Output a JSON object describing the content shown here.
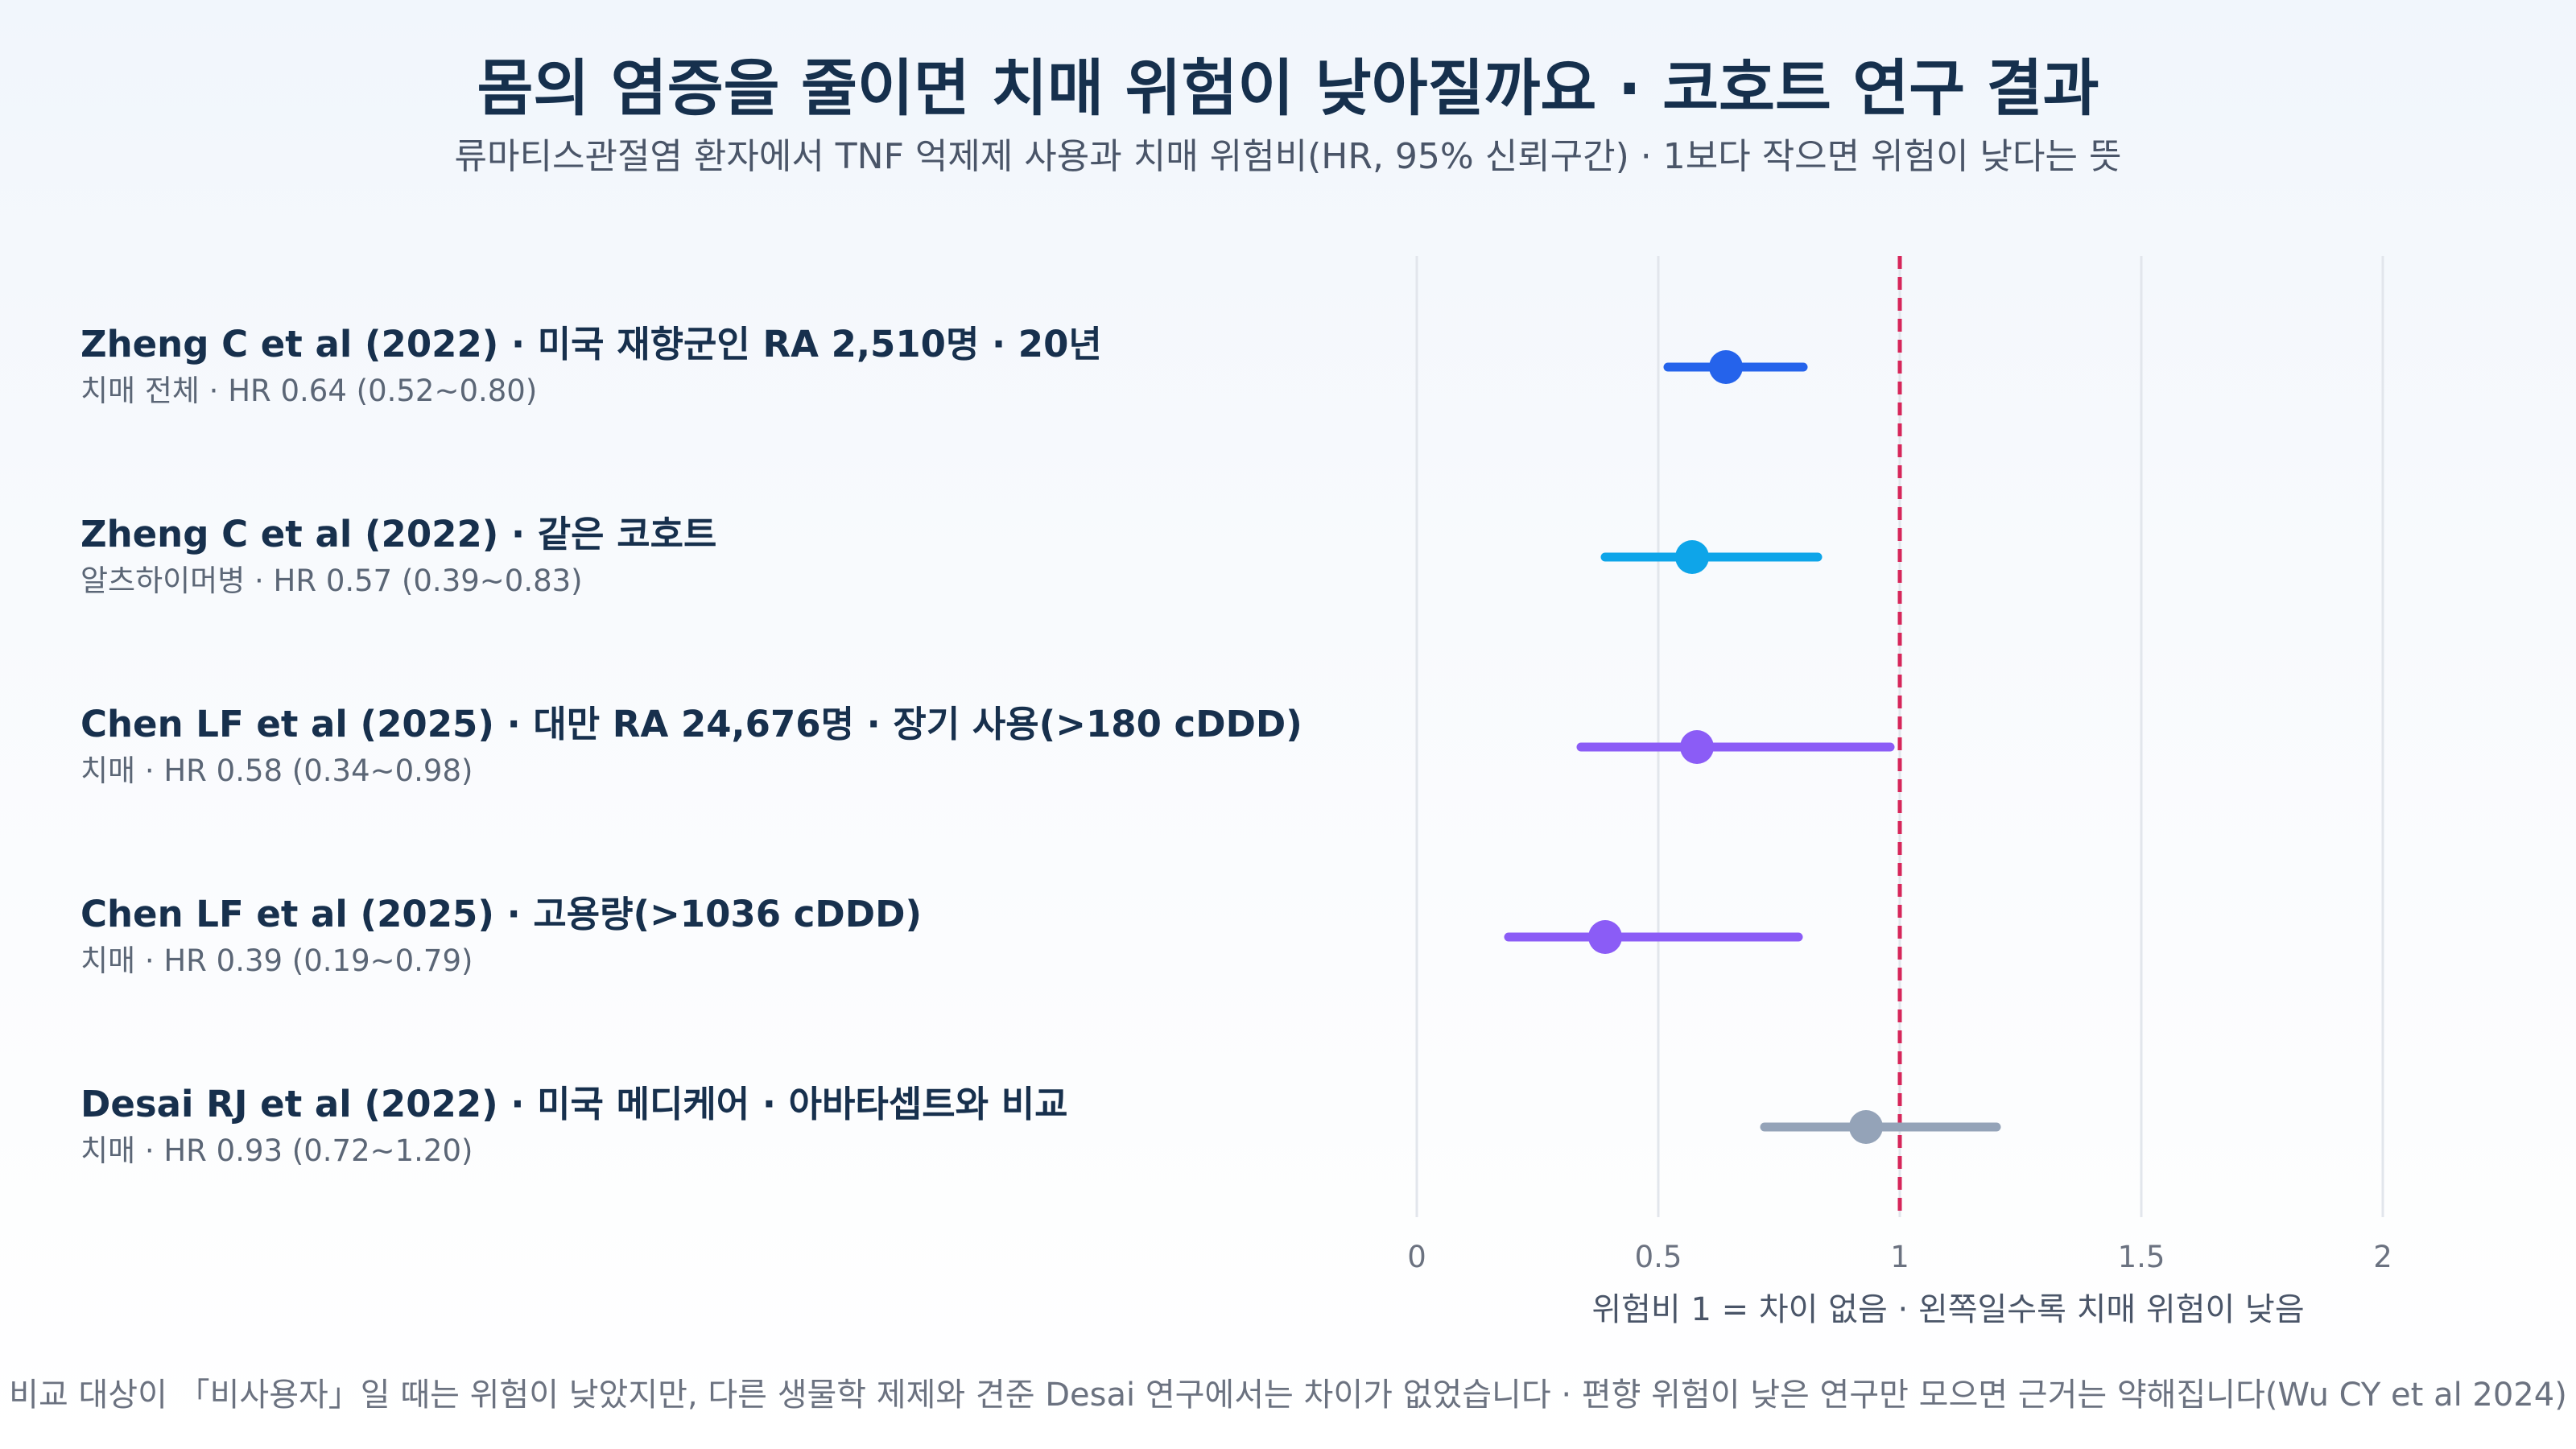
{
  "title": "몸의 염증을 줄이면 치매 위험이 낮아질까요 · 코호트 연구 결과",
  "subtitle": "류마티스관절염 환자에서 TNF 억제제 사용과 치매 위험비(HR, 95% 신뢰구간) · 1보다 작으면 위험이 낮다는 뜻",
  "footnote": "비교 대상이 「비사용자」일 때는 위험이 낮았지만, 다른 생물학 제제와 견준 Desai 연구에서는 차이가 없었습니다 · 편향 위험이 낮은 연구만 모으면 근거는 약해집니다(Wu CY et al 2024)",
  "colors": {
    "blue": "#2563eb",
    "sky": "#0ea5e9",
    "purple": "#8b5cf6",
    "gray": "#94a3b8",
    "reference_line": "#d6265a",
    "grid": "#e2e6ec"
  },
  "chart_data": {
    "type": "forest",
    "xlabel": "위험비 1 = 차이 없음 · 왼쪽일수록 치매 위험이 낮음",
    "xlim": [
      0,
      2
    ],
    "xticks": [
      0,
      0.5,
      1,
      1.5,
      2
    ],
    "xtick_labels": [
      "0",
      "0.5",
      "1",
      "1.5",
      "2"
    ],
    "reference_value": 1,
    "grid": true,
    "rows": [
      {
        "label": "Zheng C et al (2022) · 미국 재향군인 RA 2,510명 · 20년",
        "sublabel": "치매 전체 · HR 0.64 (0.52~0.80)",
        "hr": 0.64,
        "lo": 0.52,
        "hi": 0.8,
        "color": "#2563eb"
      },
      {
        "label": "Zheng C et al (2022) · 같은 코호트",
        "sublabel": "알츠하이머병 · HR 0.57 (0.39~0.83)",
        "hr": 0.57,
        "lo": 0.39,
        "hi": 0.83,
        "color": "#0ea5e9"
      },
      {
        "label": "Chen LF et al (2025) · 대만 RA 24,676명 · 장기 사용(>180 cDDD)",
        "sublabel": "치매 · HR 0.58 (0.34~0.98)",
        "hr": 0.58,
        "lo": 0.34,
        "hi": 0.98,
        "color": "#8b5cf6"
      },
      {
        "label": "Chen LF et al (2025) · 고용량(>1036 cDDD)",
        "sublabel": "치매 · HR 0.39 (0.19~0.79)",
        "hr": 0.39,
        "lo": 0.19,
        "hi": 0.79,
        "color": "#8b5cf6"
      },
      {
        "label": "Desai RJ et al (2022) · 미국 메디케어 · 아바타셉트와 비교",
        "sublabel": "치매 · HR 0.93 (0.72~1.20)",
        "hr": 0.93,
        "lo": 0.72,
        "hi": 1.2,
        "color": "#94a3b8"
      }
    ]
  }
}
